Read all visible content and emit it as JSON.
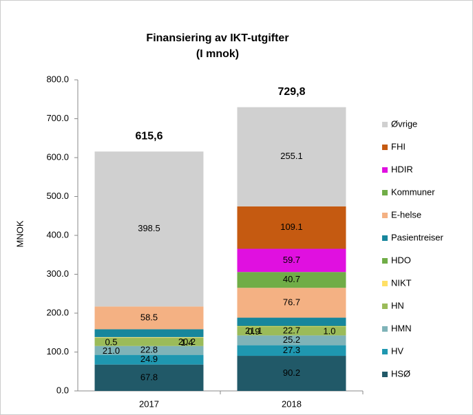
{
  "chart_data": {
    "type": "stacked-bar",
    "title": "Finansiering av IKT-utgifter",
    "subtitle": "(I mnok)",
    "y_label": "MNOK",
    "categories": [
      "2017",
      "2018"
    ],
    "total_labels": [
      "615,6",
      "729,8"
    ],
    "series": [
      {
        "name": "HSØ",
        "color": "#215968",
        "values": [
          67.8,
          90.2
        ],
        "value_labels": [
          "67.8",
          "90.2"
        ]
      },
      {
        "name": "HV",
        "color": "#1f97b0",
        "values": [
          24.9,
          27.3
        ],
        "value_labels": [
          "24.9",
          "27.3"
        ]
      },
      {
        "name": "HMN",
        "color": "#7fb3b8",
        "values": [
          22.8,
          25.2
        ],
        "value_labels": [
          "22.8",
          "25.2"
        ]
      },
      {
        "name": "HN",
        "color": "#9bbb59",
        "values": [
          21.0,
          22.7
        ],
        "value_labels": [
          "21.0",
          "22.7"
        ]
      },
      {
        "name": "NIKT",
        "color": "#ffe066",
        "values": [
          1.4,
          0.9
        ],
        "value_labels": [
          "1.4",
          "0.9"
        ]
      },
      {
        "name": "HDO",
        "color": "#70ad47",
        "values": [
          0.5,
          1.0
        ],
        "value_labels": [
          "0.5",
          "1.0"
        ]
      },
      {
        "name": "Pasientreiser",
        "color": "#17869c",
        "values": [
          20.2,
          21.1
        ],
        "value_labels": [
          "20.2",
          "21.1"
        ]
      },
      {
        "name": "E-helse",
        "color": "#f4b183",
        "values": [
          58.5,
          76.7
        ],
        "value_labels": [
          "58.5",
          "76.7"
        ]
      },
      {
        "name": "Kommuner",
        "color": "#70ad47",
        "values": [
          null,
          40.7
        ],
        "value_labels": [
          null,
          "40.7"
        ]
      },
      {
        "name": "HDIR",
        "color": "#e010e0",
        "values": [
          null,
          59.7
        ],
        "value_labels": [
          null,
          "59.7"
        ]
      },
      {
        "name": "FHI",
        "color": "#c55a11",
        "values": [
          null,
          109.1
        ],
        "value_labels": [
          null,
          "109.1"
        ]
      },
      {
        "name": "Øvrige",
        "color": "#d0d0d0",
        "values": [
          398.5,
          255.1
        ],
        "value_labels": [
          "398.5",
          "255.1"
        ]
      }
    ],
    "ylim": [
      0,
      800
    ],
    "yticks": [
      {
        "value": 0,
        "label": "0.0"
      },
      {
        "value": 100,
        "label": "100.0"
      },
      {
        "value": 200,
        "label": "200.0"
      },
      {
        "value": 300,
        "label": "300.0"
      },
      {
        "value": 400,
        "label": "400.0"
      },
      {
        "value": 500,
        "label": "500.0"
      },
      {
        "value": 600,
        "label": "600.0"
      },
      {
        "value": 700,
        "label": "700.0"
      },
      {
        "value": 800,
        "label": "800.0"
      }
    ],
    "grid": false,
    "legend": "right"
  }
}
